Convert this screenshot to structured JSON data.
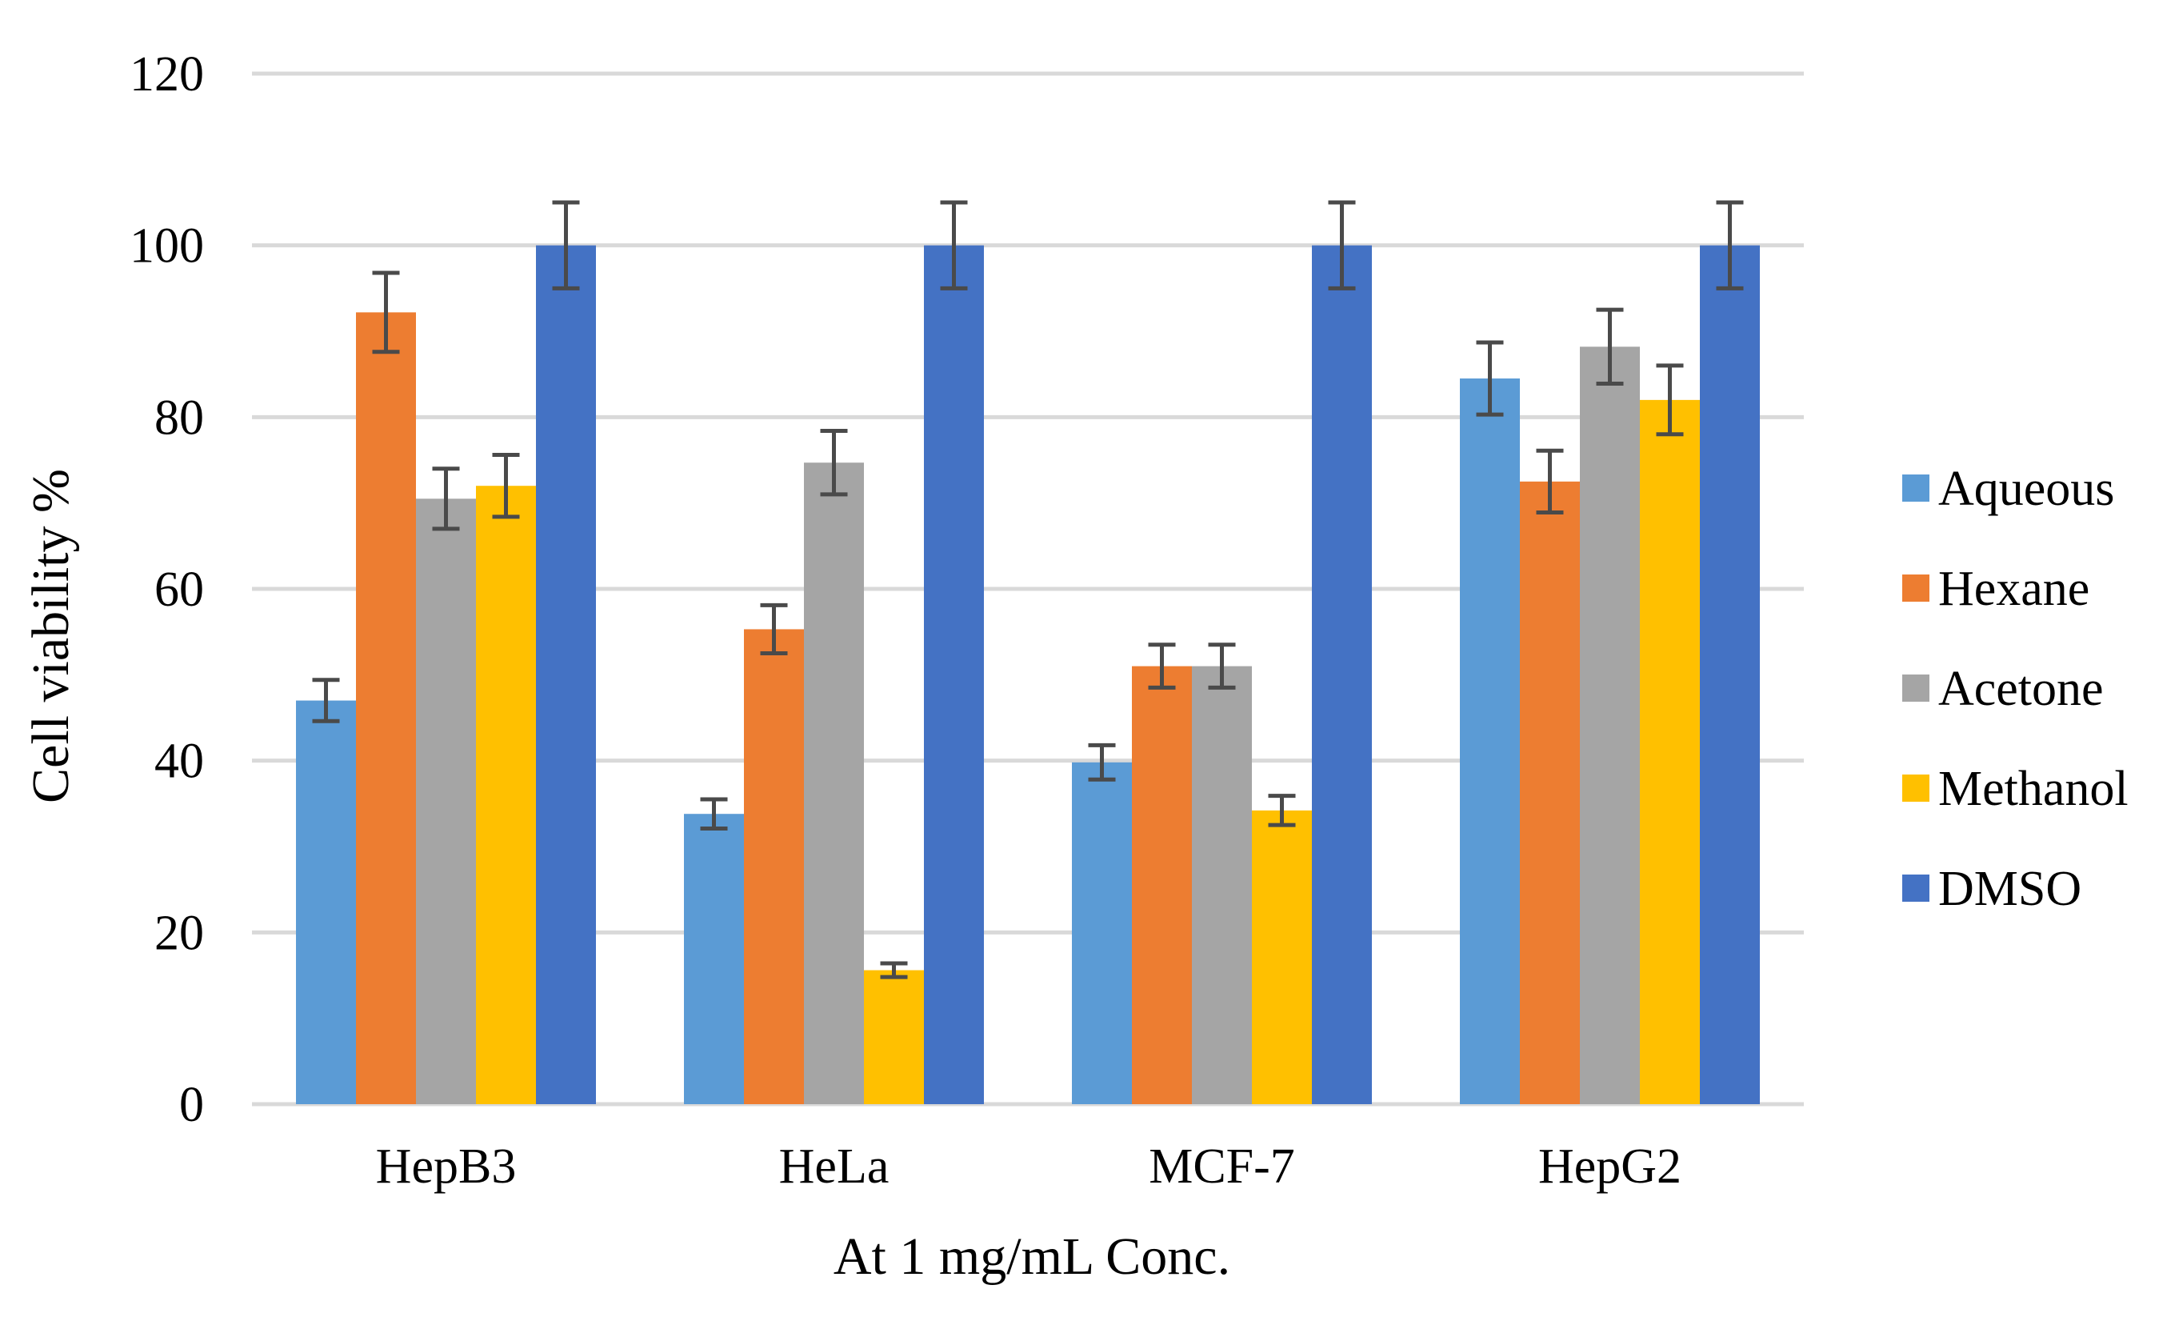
{
  "chart_data": {
    "type": "bar",
    "title": "",
    "xlabel": "At 1 mg/mL Conc.",
    "ylabel": "Cell viability %",
    "ylim": [
      0,
      120
    ],
    "yticks": [
      "0",
      "20",
      "40",
      "60",
      "80",
      "100",
      "120"
    ],
    "ytick_values": [
      0,
      20,
      40,
      60,
      80,
      100,
      120
    ],
    "grid": true,
    "legend_position": "right",
    "categories": [
      "HepB3",
      "HeLa",
      "MCF-7",
      "HepG2"
    ],
    "series": [
      {
        "name": "Aqueous",
        "color": "#5b9bd5",
        "values": [
          47,
          33.8,
          39.8,
          84.5
        ],
        "errors": [
          2.4,
          1.7,
          2.0,
          4.2
        ]
      },
      {
        "name": "Hexane",
        "color": "#ed7d31",
        "values": [
          92.2,
          55.3,
          51,
          72.5
        ],
        "errors": [
          4.6,
          2.8,
          2.5,
          3.6
        ]
      },
      {
        "name": "Acetone",
        "color": "#a5a5a5",
        "values": [
          70.5,
          74.7,
          51,
          88.2
        ],
        "errors": [
          3.5,
          3.7,
          2.5,
          4.3
        ]
      },
      {
        "name": "Methanol",
        "color": "#ffc000",
        "values": [
          72,
          15.6,
          34.2,
          82
        ],
        "errors": [
          3.6,
          0.8,
          1.7,
          4.0
        ]
      },
      {
        "name": "DMSO",
        "color": "#4472c4",
        "values": [
          100,
          100,
          100,
          100
        ],
        "errors": [
          5,
          5,
          5,
          5
        ]
      }
    ]
  }
}
